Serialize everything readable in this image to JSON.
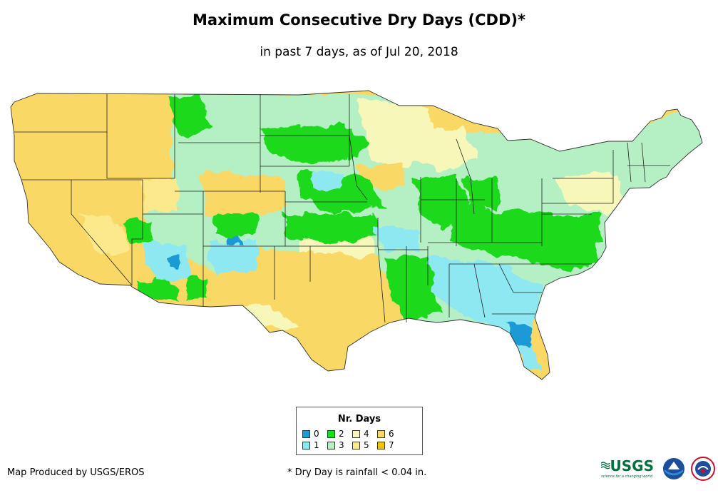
{
  "title": "Maximum Consecutive Dry Days (CDD)*",
  "subtitle": "in past 7 days, as of Jul 20, 2018",
  "legend": {
    "title": "Nr. Days",
    "items": [
      {
        "label": "0",
        "color": "#1b9ad6"
      },
      {
        "label": "1",
        "color": "#8de8f2"
      },
      {
        "label": "2",
        "color": "#1ed91e"
      },
      {
        "label": "3",
        "color": "#b4f0c3"
      },
      {
        "label": "4",
        "color": "#f6f7b9"
      },
      {
        "label": "5",
        "color": "#fbe98c"
      },
      {
        "label": "6",
        "color": "#f9d865"
      },
      {
        "label": "7",
        "color": "#f6c100"
      }
    ]
  },
  "credit": "Map Produced by USGS/EROS",
  "footnote": "* Dry Day is rainfall < 0.04 in.",
  "logos": {
    "usgs": "USGS",
    "usgs_tagline": "science for a changing world",
    "noaa": "noaa",
    "nws": "NWS"
  },
  "colors": {
    "water": "#ffffff",
    "state_border": "#222222",
    "country_border": "#333333"
  }
}
